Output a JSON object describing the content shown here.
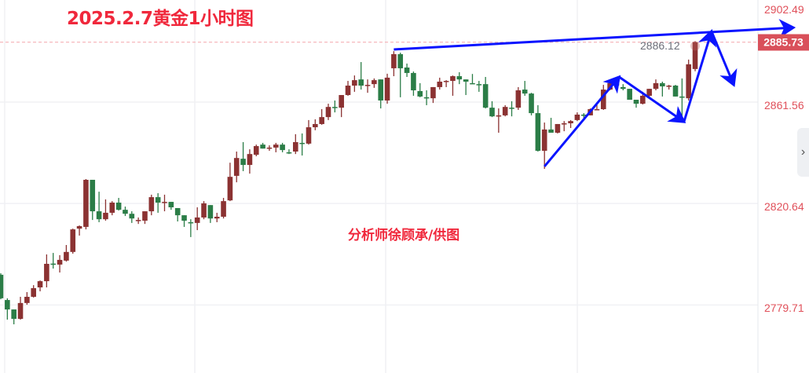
{
  "chart_data": {
    "type": "candlestick",
    "title": "2025.2.7黄金1小时图",
    "annotation_text": "分析师徐顾承/供图",
    "y_ticks": [
      2902.49,
      2861.56,
      2820.64,
      2779.71
    ],
    "last_price": 2885.73,
    "high_label": "2886.12",
    "grid": true,
    "colors": {
      "up": "#8b3232",
      "down": "#2b7d47",
      "trendline": "#0a14ff",
      "tick_label": "#e0505a",
      "price_tag": "#d9505a"
    },
    "candles_ohlc": [
      [
        2791.9,
        2792.5,
        2782.0,
        2782.4
      ],
      [
        2781.7,
        2782.4,
        2773.8,
        2777.9
      ],
      [
        2777.9,
        2777.9,
        2771.9,
        2774.1
      ],
      [
        2774.1,
        2783.0,
        2773.8,
        2780.5
      ],
      [
        2780.5,
        2784.9,
        2779.8,
        2783.0
      ],
      [
        2783.0,
        2787.7,
        2782.7,
        2786.5
      ],
      [
        2786.8,
        2789.6,
        2785.2,
        2789.3
      ],
      [
        2789.3,
        2800.1,
        2786.8,
        2796.3
      ],
      [
        2796.4,
        2800.7,
        2794.4,
        2796.2
      ],
      [
        2796.0,
        2799.8,
        2792.8,
        2797.9
      ],
      [
        2797.6,
        2803.9,
        2797.2,
        2801.1
      ],
      [
        2801.1,
        2810.5,
        2800.4,
        2810.2
      ],
      [
        2810.5,
        2811.8,
        2807.7,
        2811.5
      ],
      [
        2811.2,
        2830.5,
        2810.2,
        2830.2
      ],
      [
        2830.2,
        2830.2,
        2814.0,
        2817.5
      ],
      [
        2817.5,
        2825.4,
        2813.1,
        2814.3
      ],
      [
        2814.3,
        2822.3,
        2813.7,
        2816.9
      ],
      [
        2816.9,
        2821.6,
        2815.9,
        2821.0
      ],
      [
        2821.0,
        2822.9,
        2817.8,
        2818.1
      ],
      [
        2818.1,
        2819.4,
        2815.6,
        2816.5
      ],
      [
        2816.5,
        2817.5,
        2812.8,
        2814.6
      ],
      [
        2813.9,
        2815.0,
        2812.4,
        2814.0
      ],
      [
        2813.7,
        2817.5,
        2812.4,
        2817.5
      ],
      [
        2817.5,
        2824.2,
        2815.9,
        2823.2
      ],
      [
        2823.2,
        2824.8,
        2816.9,
        2821.0
      ],
      [
        2821.1,
        2824.2,
        2817.5,
        2821.3
      ],
      [
        2821.3,
        2821.3,
        2818.1,
        2819.1
      ],
      [
        2818.8,
        2818.8,
        2813.4,
        2815.9
      ],
      [
        2815.9,
        2815.9,
        2811.2,
        2813.7
      ],
      [
        2813.1,
        2814.3,
        2807.1,
        2812.9
      ],
      [
        2812.8,
        2819.1,
        2809.9,
        2815.0
      ],
      [
        2815.0,
        2821.6,
        2814.3,
        2820.7
      ],
      [
        2820.0,
        2820.0,
        2812.8,
        2814.6
      ],
      [
        2814.6,
        2816.9,
        2813.1,
        2815.3
      ],
      [
        2815.3,
        2822.9,
        2814.6,
        2821.6
      ],
      [
        2821.9,
        2837.1,
        2821.6,
        2831.4
      ],
      [
        2831.8,
        2841.6,
        2829.2,
        2839.0
      ],
      [
        2838.7,
        2845.4,
        2833.7,
        2836.2
      ],
      [
        2836.2,
        2842.5,
        2832.7,
        2840.6
      ],
      [
        2840.3,
        2844.4,
        2839.7,
        2843.8
      ],
      [
        2844.4,
        2845.1,
        2842.8,
        2842.8
      ],
      [
        2843.0,
        2844.1,
        2841.9,
        2843.2
      ],
      [
        2843.2,
        2845.1,
        2841.3,
        2844.4
      ],
      [
        2844.4,
        2845.1,
        2841.3,
        2842.2
      ],
      [
        2841.3,
        2842.5,
        2840.6,
        2841.1
      ],
      [
        2841.6,
        2848.6,
        2840.6,
        2845.4
      ],
      [
        2845.1,
        2848.9,
        2840.0,
        2844.9
      ],
      [
        2844.8,
        2854.3,
        2844.4,
        2851.4
      ],
      [
        2851.4,
        2854.6,
        2850.2,
        2852.7
      ],
      [
        2852.7,
        2858.7,
        2852.4,
        2855.5
      ],
      [
        2855.5,
        2860.9,
        2854.3,
        2859.6
      ],
      [
        2859.6,
        2862.2,
        2857.4,
        2859.5
      ],
      [
        2859.3,
        2864.4,
        2855.5,
        2864.4
      ],
      [
        2864.4,
        2870.1,
        2864.1,
        2868.2
      ],
      [
        2868.2,
        2872.3,
        2865.7,
        2870.4
      ],
      [
        2870.7,
        2877.7,
        2866.6,
        2868.2
      ],
      [
        2868.4,
        2870.7,
        2865.3,
        2868.5
      ],
      [
        2868.8,
        2871.1,
        2867.3,
        2870.4
      ],
      [
        2870.7,
        2870.7,
        2859.0,
        2862.2
      ],
      [
        2862.2,
        2873.0,
        2860.9,
        2871.4
      ],
      [
        2875.2,
        2882.1,
        2872.0,
        2880.9
      ],
      [
        2880.9,
        2881.5,
        2863.5,
        2875.2
      ],
      [
        2875.5,
        2877.1,
        2871.7,
        2873.3
      ],
      [
        2873.3,
        2873.9,
        2864.1,
        2866.3
      ],
      [
        2866.0,
        2869.2,
        2863.5,
        2863.8
      ],
      [
        2863.5,
        2866.3,
        2860.3,
        2863.3
      ],
      [
        2863.1,
        2867.6,
        2861.2,
        2867.6
      ],
      [
        2867.6,
        2871.4,
        2866.6,
        2869.8
      ],
      [
        2869.9,
        2870.4,
        2867.6,
        2870.1
      ],
      [
        2870.1,
        2872.3,
        2864.1,
        2872.0
      ],
      [
        2872.0,
        2873.6,
        2868.8,
        2870.7
      ],
      [
        2870.7,
        2870.7,
        2864.4,
        2869.8
      ],
      [
        2869.2,
        2872.9,
        2868.8,
        2869.0
      ],
      [
        2868.8,
        2870.1,
        2865.7,
        2868.7
      ],
      [
        2868.8,
        2871.7,
        2859.0,
        2859.3
      ],
      [
        2859.3,
        2861.9,
        2855.5,
        2855.8
      ],
      [
        2856.0,
        2859.0,
        2849.2,
        2856.2
      ],
      [
        2856.2,
        2860.3,
        2855.8,
        2859.6
      ],
      [
        2859.3,
        2861.9,
        2855.8,
        2859.2
      ],
      [
        2859.3,
        2867.6,
        2858.4,
        2866.3
      ],
      [
        2866.6,
        2870.1,
        2864.1,
        2865.0
      ],
      [
        2865.0,
        2865.3,
        2856.2,
        2857.1
      ],
      [
        2857.1,
        2860.3,
        2841.6,
        2841.9
      ],
      [
        2841.9,
        2853.3,
        2834.6,
        2850.5
      ],
      [
        2850.5,
        2855.2,
        2849.2,
        2849.2
      ],
      [
        2849.2,
        2852.7,
        2848.9,
        2852.7
      ],
      [
        2852.8,
        2853.9,
        2849.8,
        2853.0
      ],
      [
        2853.0,
        2854.3,
        2851.1,
        2853.9
      ],
      [
        2854.3,
        2857.4,
        2853.9,
        2856.5
      ],
      [
        2856.5,
        2857.1,
        2855.2,
        2856.3
      ],
      [
        2856.2,
        2859.0,
        2856.2,
        2858.7
      ],
      [
        2858.5,
        2860.6,
        2858.4,
        2858.7
      ],
      [
        2858.7,
        2868.5,
        2858.4,
        2866.6
      ],
      [
        2866.6,
        2869.5,
        2866.3,
        2869.2
      ],
      [
        2869.2,
        2870.4,
        2866.9,
        2868.2
      ],
      [
        2867.6,
        2868.8,
        2866.3,
        2866.9
      ],
      [
        2866.9,
        2866.9,
        2862.5,
        2862.5
      ],
      [
        2862.5,
        2862.5,
        2859.3,
        2860.9
      ],
      [
        2860.9,
        2865.7,
        2860.6,
        2864.1
      ],
      [
        2864.1,
        2866.9,
        2863.8,
        2866.9
      ],
      [
        2866.9,
        2870.7,
        2866.3,
        2869.2
      ],
      [
        2869.2,
        2869.8,
        2863.8,
        2867.9
      ],
      [
        2868.1,
        2868.5,
        2866.6,
        2868.2
      ],
      [
        2868.2,
        2868.5,
        2863.8,
        2863.8
      ],
      [
        2863.8,
        2871.1,
        2853.6,
        2863.6
      ],
      [
        2863.1,
        2878.7,
        2862.2,
        2876.8
      ],
      [
        2874.9,
        2886.12,
        2874.0,
        2885.73
      ]
    ],
    "trendlines": [
      {
        "from": [
          61,
          2882.8
        ],
        "to": [
          122,
          2891.6
        ],
        "arrow": true
      },
      {
        "from": [
          84,
          2835.6
        ],
        "to": [
          95.4,
          2871.7
        ],
        "arrow": true
      },
      {
        "from": [
          95.4,
          2871.7
        ],
        "to": [
          105.3,
          2853.6
        ],
        "arrow": true
      },
      {
        "from": [
          105.3,
          2853.6
        ],
        "to": [
          109.5,
          2890.1
        ],
        "arrow": true
      },
      {
        "from": [
          109.5,
          2890.1
        ],
        "to": [
          112.9,
          2868.5
        ],
        "arrow": true
      }
    ]
  },
  "ui": {
    "collapse_icon": "chevron-right-icon"
  }
}
